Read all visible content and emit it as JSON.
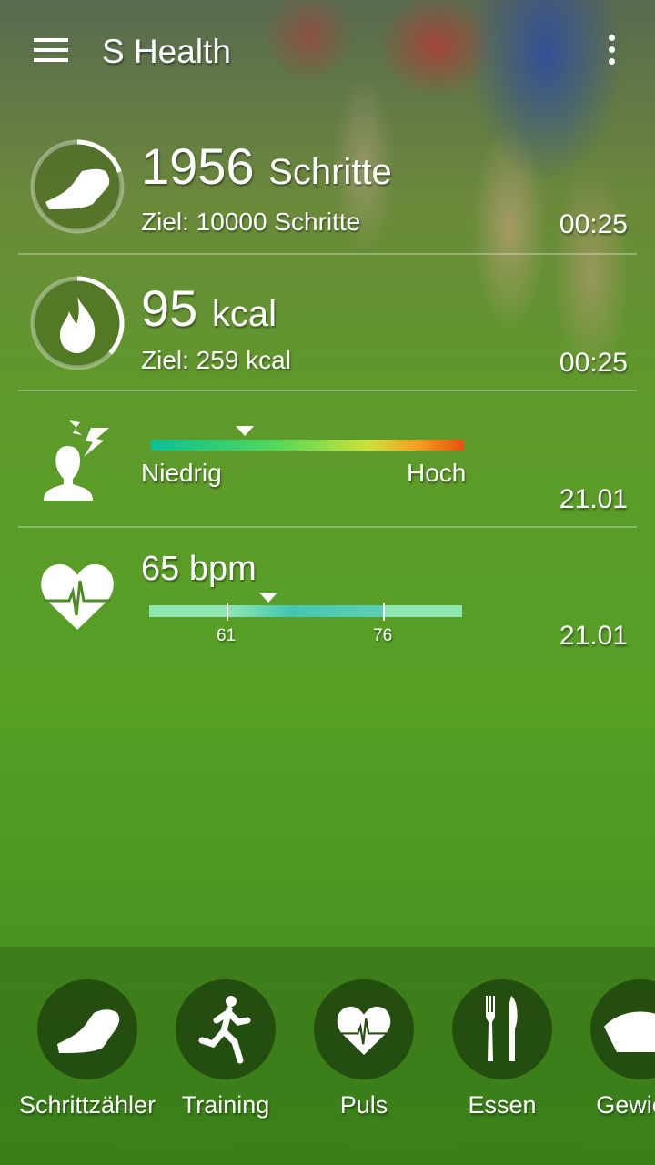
{
  "app": {
    "title": "S Health"
  },
  "steps": {
    "value": "1956",
    "unit": "Schritte",
    "goal": "Ziel: 10000 Schritte",
    "time": "00:25",
    "progress": 0.196
  },
  "calories": {
    "value": "95",
    "unit": "kcal",
    "goal": "Ziel: 259 kcal",
    "time": "00:25",
    "progress": 0.367
  },
  "stress": {
    "low": "Niedrig",
    "high": "Hoch",
    "time": "21.01",
    "level": 0.3
  },
  "heart": {
    "value": "65 bpm",
    "range_low": "61",
    "range_high": "76",
    "time": "21.01",
    "colors": {
      "outer": "#8ee6b0",
      "inner": "#45c6b0"
    }
  },
  "dock": [
    {
      "label": "Schrittzähler",
      "icon": "shoe-icon"
    },
    {
      "label": "Training",
      "icon": "runner-icon"
    },
    {
      "label": "Puls",
      "icon": "heart-pulse-icon"
    },
    {
      "label": "Essen",
      "icon": "fork-knife-icon"
    },
    {
      "label": "Gewicht",
      "icon": "scale-icon"
    }
  ]
}
